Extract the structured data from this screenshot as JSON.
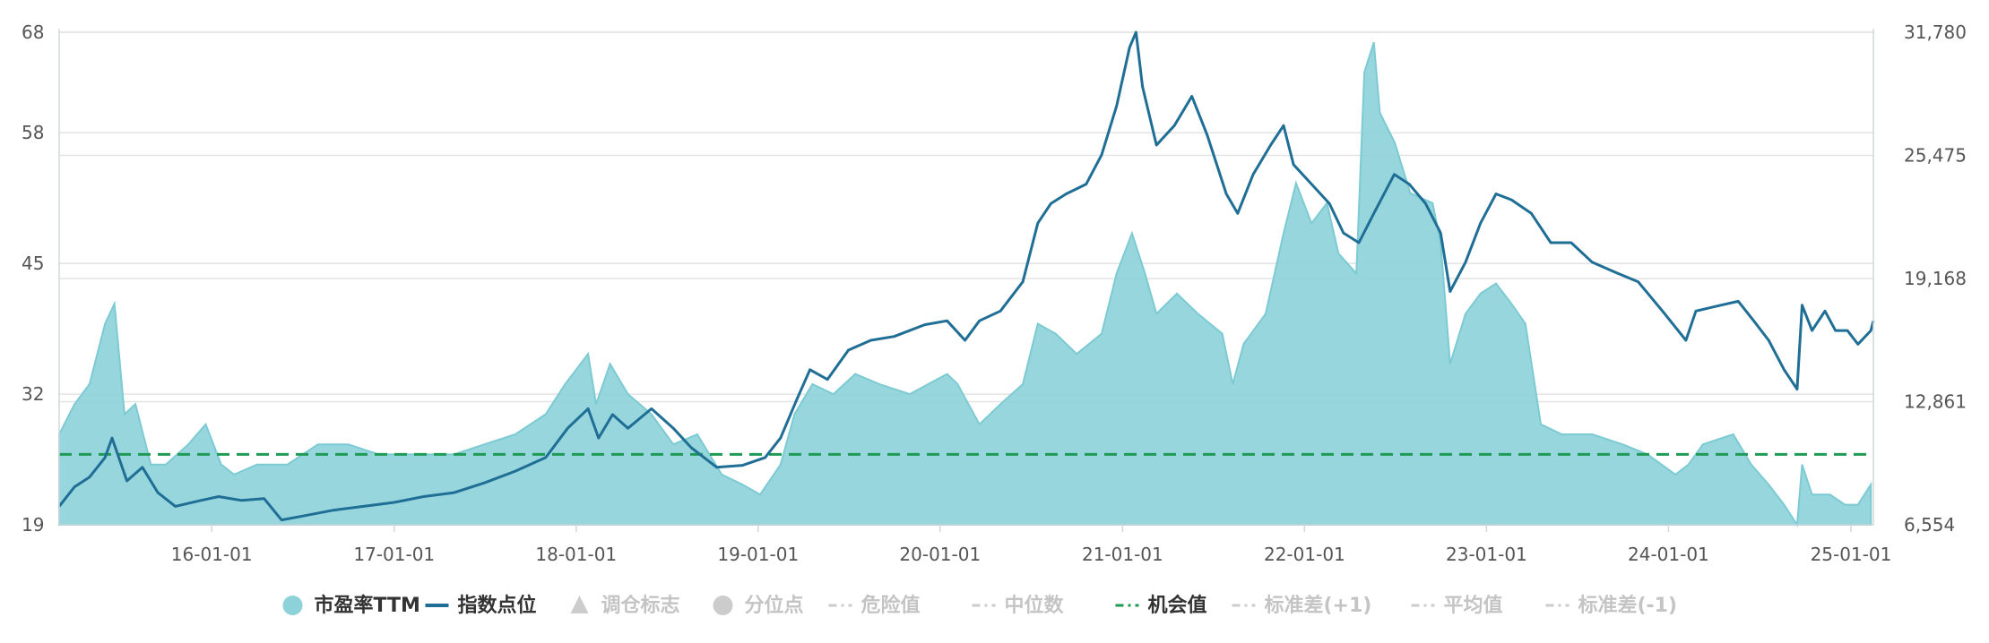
{
  "chart_data": {
    "type": "area",
    "title": "",
    "x_labels": [
      "16-01-01",
      "17-01-01",
      "18-01-01",
      "19-01-01",
      "20-01-01",
      "21-01-01",
      "22-01-01",
      "23-01-01",
      "24-01-01",
      "25-01-01"
    ],
    "x_range": [
      "2015-03-01",
      "2025-02-15"
    ],
    "y_left": {
      "ticks": [
        19,
        32,
        45,
        58,
        68
      ],
      "range": [
        19,
        68
      ]
    },
    "y_right": {
      "ticks": [
        "6,554",
        "12,861",
        "19,168",
        "25,475",
        "31,780"
      ],
      "range": [
        6554,
        31780
      ]
    },
    "grid": true,
    "opportunity_value": 26,
    "series": [
      {
        "name": "市盈率TTM",
        "type": "area",
        "axis": "left",
        "color": "#8dd1d9",
        "points": [
          [
            "2015-03-01",
            28
          ],
          [
            "2015-04-01",
            31
          ],
          [
            "2015-05-01",
            33
          ],
          [
            "2015-06-01",
            39
          ],
          [
            "2015-06-20",
            41
          ],
          [
            "2015-07-10",
            30
          ],
          [
            "2015-08-01",
            31
          ],
          [
            "2015-09-01",
            25
          ],
          [
            "2015-10-01",
            25
          ],
          [
            "2015-11-15",
            27
          ],
          [
            "2015-12-20",
            29
          ],
          [
            "2016-01-20",
            25
          ],
          [
            "2016-02-15",
            24
          ],
          [
            "2016-04-01",
            25
          ],
          [
            "2016-06-01",
            25
          ],
          [
            "2016-08-01",
            27
          ],
          [
            "2016-10-01",
            27
          ],
          [
            "2016-12-01",
            26
          ],
          [
            "2017-01-15",
            26
          ],
          [
            "2017-03-01",
            26
          ],
          [
            "2017-05-01",
            26
          ],
          [
            "2017-07-01",
            27
          ],
          [
            "2017-09-01",
            28
          ],
          [
            "2017-11-01",
            30
          ],
          [
            "2017-12-10",
            33
          ],
          [
            "2018-01-25",
            36
          ],
          [
            "2018-02-10",
            31
          ],
          [
            "2018-03-10",
            35
          ],
          [
            "2018-04-15",
            32
          ],
          [
            "2018-06-01",
            30
          ],
          [
            "2018-07-15",
            27
          ],
          [
            "2018-09-01",
            28
          ],
          [
            "2018-10-20",
            24
          ],
          [
            "2018-12-01",
            23
          ],
          [
            "2019-01-05",
            22
          ],
          [
            "2019-02-15",
            25
          ],
          [
            "2019-03-15",
            30
          ],
          [
            "2019-04-20",
            33
          ],
          [
            "2019-06-01",
            32
          ],
          [
            "2019-07-15",
            34
          ],
          [
            "2019-09-01",
            33
          ],
          [
            "2019-11-01",
            32
          ],
          [
            "2020-01-15",
            34
          ],
          [
            "2020-02-05",
            33
          ],
          [
            "2020-03-20",
            29
          ],
          [
            "2020-05-01",
            31
          ],
          [
            "2020-06-15",
            33
          ],
          [
            "2020-07-15",
            39
          ],
          [
            "2020-08-20",
            38
          ],
          [
            "2020-10-01",
            36
          ],
          [
            "2020-11-20",
            38
          ],
          [
            "2020-12-20",
            44
          ],
          [
            "2021-01-20",
            48
          ],
          [
            "2021-02-15",
            44
          ],
          [
            "2021-03-10",
            40
          ],
          [
            "2021-04-20",
            42
          ],
          [
            "2021-06-01",
            40
          ],
          [
            "2021-07-20",
            38
          ],
          [
            "2021-08-10",
            33
          ],
          [
            "2021-09-01",
            37
          ],
          [
            "2021-10-15",
            40
          ],
          [
            "2021-11-20",
            48
          ],
          [
            "2021-12-15",
            53
          ],
          [
            "2022-01-15",
            49
          ],
          [
            "2022-02-15",
            51
          ],
          [
            "2022-03-10",
            46
          ],
          [
            "2022-04-15",
            44
          ],
          [
            "2022-05-01",
            64
          ],
          [
            "2022-05-20",
            67
          ],
          [
            "2022-06-01",
            60
          ],
          [
            "2022-07-01",
            57
          ],
          [
            "2022-08-01",
            52
          ],
          [
            "2022-09-15",
            51
          ],
          [
            "2022-10-01",
            47
          ],
          [
            "2022-10-20",
            35
          ],
          [
            "2022-11-20",
            40
          ],
          [
            "2022-12-20",
            42
          ],
          [
            "2023-01-20",
            43
          ],
          [
            "2023-02-20",
            41
          ],
          [
            "2023-03-20",
            39
          ],
          [
            "2023-04-20",
            29
          ],
          [
            "2023-06-01",
            28
          ],
          [
            "2023-08-01",
            28
          ],
          [
            "2023-10-01",
            27
          ],
          [
            "2023-11-20",
            26
          ],
          [
            "2024-01-15",
            24
          ],
          [
            "2024-02-10",
            25
          ],
          [
            "2024-03-10",
            27
          ],
          [
            "2024-05-10",
            28
          ],
          [
            "2024-06-15",
            25
          ],
          [
            "2024-07-20",
            23
          ],
          [
            "2024-08-20",
            21
          ],
          [
            "2024-09-15",
            19
          ],
          [
            "2024-09-25",
            25
          ],
          [
            "2024-10-15",
            22
          ],
          [
            "2024-11-20",
            22
          ],
          [
            "2024-12-20",
            21
          ],
          [
            "2025-01-15",
            21
          ],
          [
            "2025-02-10",
            23
          ]
        ]
      },
      {
        "name": "指数点位",
        "type": "line",
        "axis": "right",
        "color": "#1f6e96",
        "points": [
          [
            "2015-03-01",
            7500
          ],
          [
            "2015-04-01",
            8500
          ],
          [
            "2015-05-01",
            9000
          ],
          [
            "2015-06-01",
            10000
          ],
          [
            "2015-06-15",
            11000
          ],
          [
            "2015-07-15",
            8800
          ],
          [
            "2015-08-15",
            9500
          ],
          [
            "2015-09-15",
            8200
          ],
          [
            "2015-10-20",
            7500
          ],
          [
            "2015-12-10",
            7800
          ],
          [
            "2016-01-15",
            8000
          ],
          [
            "2016-03-01",
            7800
          ],
          [
            "2016-04-15",
            7900
          ],
          [
            "2016-05-20",
            6800
          ],
          [
            "2016-07-01",
            7000
          ],
          [
            "2016-09-01",
            7300
          ],
          [
            "2016-11-01",
            7500
          ],
          [
            "2017-01-01",
            7700
          ],
          [
            "2017-03-01",
            8000
          ],
          [
            "2017-05-01",
            8200
          ],
          [
            "2017-07-01",
            8700
          ],
          [
            "2017-09-01",
            9300
          ],
          [
            "2017-11-01",
            10000
          ],
          [
            "2017-12-15",
            11500
          ],
          [
            "2018-01-25",
            12500
          ],
          [
            "2018-02-15",
            11000
          ],
          [
            "2018-03-15",
            12200
          ],
          [
            "2018-04-15",
            11500
          ],
          [
            "2018-06-01",
            12500
          ],
          [
            "2018-07-15",
            11500
          ],
          [
            "2018-08-20",
            10500
          ],
          [
            "2018-10-10",
            9500
          ],
          [
            "2018-12-01",
            9600
          ],
          [
            "2019-01-15",
            10000
          ],
          [
            "2019-02-15",
            11000
          ],
          [
            "2019-03-20",
            13000
          ],
          [
            "2019-04-15",
            14500
          ],
          [
            "2019-05-20",
            14000
          ],
          [
            "2019-07-01",
            15500
          ],
          [
            "2019-08-15",
            16000
          ],
          [
            "2019-10-01",
            16200
          ],
          [
            "2019-12-01",
            16800
          ],
          [
            "2020-01-15",
            17000
          ],
          [
            "2020-02-20",
            16000
          ],
          [
            "2020-03-20",
            17000
          ],
          [
            "2020-05-01",
            17500
          ],
          [
            "2020-06-15",
            19000
          ],
          [
            "2020-07-15",
            22000
          ],
          [
            "2020-08-10",
            23000
          ],
          [
            "2020-09-10",
            23500
          ],
          [
            "2020-10-20",
            24000
          ],
          [
            "2020-11-20",
            25500
          ],
          [
            "2020-12-20",
            28000
          ],
          [
            "2021-01-15",
            31000
          ],
          [
            "2021-01-28",
            31780
          ],
          [
            "2021-02-10",
            29000
          ],
          [
            "2021-03-10",
            26000
          ],
          [
            "2021-04-15",
            27000
          ],
          [
            "2021-05-20",
            28500
          ],
          [
            "2021-06-20",
            26500
          ],
          [
            "2021-07-28",
            23500
          ],
          [
            "2021-08-20",
            22500
          ],
          [
            "2021-09-20",
            24500
          ],
          [
            "2021-10-25",
            26000
          ],
          [
            "2021-11-20",
            27000
          ],
          [
            "2021-12-10",
            25000
          ],
          [
            "2022-01-15",
            24000
          ],
          [
            "2022-02-20",
            23000
          ],
          [
            "2022-03-20",
            21500
          ],
          [
            "2022-04-20",
            21000
          ],
          [
            "2022-05-20",
            22500
          ],
          [
            "2022-06-30",
            24500
          ],
          [
            "2022-07-30",
            24000
          ],
          [
            "2022-09-01",
            23000
          ],
          [
            "2022-10-01",
            21500
          ],
          [
            "2022-10-20",
            18500
          ],
          [
            "2022-11-20",
            20000
          ],
          [
            "2022-12-20",
            22000
          ],
          [
            "2023-01-20",
            23500
          ],
          [
            "2023-02-20",
            23200
          ],
          [
            "2023-04-01",
            22500
          ],
          [
            "2023-05-10",
            21000
          ],
          [
            "2023-06-20",
            21000
          ],
          [
            "2023-08-01",
            20000
          ],
          [
            "2023-09-15",
            19500
          ],
          [
            "2023-11-01",
            19000
          ],
          [
            "2023-12-20",
            17500
          ],
          [
            "2024-02-05",
            16000
          ],
          [
            "2024-02-25",
            17500
          ],
          [
            "2024-04-15",
            17800
          ],
          [
            "2024-05-20",
            18000
          ],
          [
            "2024-06-20",
            17000
          ],
          [
            "2024-07-20",
            16000
          ],
          [
            "2024-08-20",
            14500
          ],
          [
            "2024-09-15",
            13500
          ],
          [
            "2024-09-25",
            17800
          ],
          [
            "2024-10-15",
            16500
          ],
          [
            "2024-11-10",
            17500
          ],
          [
            "2024-12-01",
            16500
          ],
          [
            "2024-12-25",
            16500
          ],
          [
            "2025-01-15",
            15800
          ],
          [
            "2025-02-10",
            16500
          ],
          [
            "2025-02-15",
            17000
          ]
        ]
      }
    ],
    "reference_lines": [
      {
        "name": "机会值",
        "axis": "left",
        "value": 26,
        "color": "#1f9a55",
        "style": "dashed"
      }
    ]
  },
  "legend": [
    {
      "label": "市盈率TTM",
      "symbol": "circle",
      "color": "#8dd1d9",
      "active": true
    },
    {
      "label": "指数点位",
      "symbol": "line",
      "color": "#1f6e96",
      "active": true
    },
    {
      "label": "调仓标志",
      "symbol": "triangle",
      "color": "#cccccc",
      "active": false
    },
    {
      "label": "分位点",
      "symbol": "circle",
      "color": "#cccccc",
      "active": false
    },
    {
      "label": "危险值",
      "symbol": "dash-dot",
      "color": "#cccccc",
      "active": false
    },
    {
      "label": "中位数",
      "symbol": "dash-dot",
      "color": "#cccccc",
      "active": false
    },
    {
      "label": "机会值",
      "symbol": "dash-dot",
      "color": "#1f9a55",
      "active": true
    },
    {
      "label": "标准差(+1)",
      "symbol": "dash-dot",
      "color": "#cccccc",
      "active": false
    },
    {
      "label": "平均值",
      "symbol": "dash-dot",
      "color": "#cccccc",
      "active": false
    },
    {
      "label": "标准差(-1)",
      "symbol": "dash-dot",
      "color": "#cccccc",
      "active": false
    }
  ]
}
